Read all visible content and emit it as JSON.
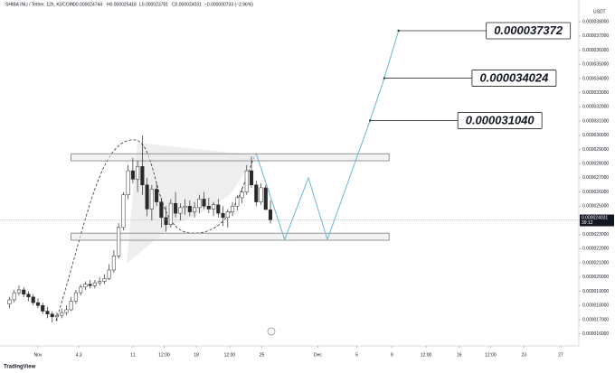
{
  "chart_data": {
    "type": "candlestick",
    "header": {
      "symbol": "SHIBA INU / Tether, 12h, KUCOIN",
      "open": "O0.000024744",
      "high": "H0.000025418",
      "low": "L0.000023781",
      "close": "C0.000024031",
      "change": "−0.000000733 (−2.96%)"
    },
    "currency": "USDT",
    "brand": "TradingView",
    "price_label": "0.000024031",
    "countdown": "39:12",
    "up_color": "#ffffff",
    "down_color": "#2a2a2a",
    "x": [
      -3,
      -2.5,
      -2,
      -1.5,
      -1,
      -0.5,
      0,
      0.5,
      1,
      1.5,
      2,
      2.5,
      3,
      3.5,
      4,
      4.5,
      5,
      5.5,
      6,
      6.5,
      7,
      7.5,
      8,
      8.5,
      9,
      9.5,
      10,
      10.5,
      11,
      11.5,
      12,
      12.5,
      13,
      13.5,
      14,
      14.5,
      15,
      15.5,
      16,
      16.5,
      17,
      17.5,
      18,
      18.5,
      19,
      19.5,
      20,
      20.5,
      21,
      21.5,
      22,
      22.5,
      23,
      23.5,
      24,
      24.5
    ],
    "open": [
      1.81e-05,
      1.84e-05,
      1.89e-05,
      1.91e-05,
      1.88e-05,
      1.86e-05,
      1.82e-05,
      1.8e-05,
      1.76e-05,
      1.74e-05,
      1.72e-05,
      1.73e-05,
      1.75e-05,
      1.77e-05,
      1.83e-05,
      1.89e-05,
      1.93e-05,
      1.95e-05,
      1.94e-05,
      1.96e-05,
      1.97e-05,
      1.99e-05,
      2.05e-05,
      2.15e-05,
      2.35e-05,
      2.58e-05,
      2.75e-05,
      2.69e-05,
      2.78e-05,
      2.65e-05,
      2.48e-05,
      2.62e-05,
      2.53e-05,
      2.42e-05,
      2.37e-05,
      2.52e-05,
      2.45e-05,
      2.49e-05,
      2.5e-05,
      2.46e-05,
      2.49e-05,
      2.55e-05,
      2.5e-05,
      2.48e-05,
      2.51e-05,
      2.45e-05,
      2.42e-05,
      2.46e-05,
      2.5e-05,
      2.56e-05,
      2.6e-05,
      2.75e-05,
      2.65e-05,
      2.53e-05,
      2.63e-05,
      2.4744e-05
    ],
    "high": [
      1.86e-05,
      1.91e-05,
      1.94e-05,
      1.93e-05,
      1.9e-05,
      1.88e-05,
      1.85e-05,
      1.82e-05,
      1.79e-05,
      1.76e-05,
      1.75e-05,
      1.78e-05,
      1.8e-05,
      1.86e-05,
      1.91e-05,
      1.95e-05,
      1.97e-05,
      1.98e-05,
      1.98e-05,
      2e-05,
      2.02e-05,
      2.09e-05,
      2.19e-05,
      2.38e-05,
      2.6e-05,
      2.79e-05,
      2.84e-05,
      2.82e-05,
      3e-05,
      2.7e-05,
      2.65e-05,
      2.66e-05,
      2.56e-05,
      2.5e-05,
      2.55e-05,
      2.6e-05,
      2.52e-05,
      2.55e-05,
      2.54e-05,
      2.53e-05,
      2.58e-05,
      2.6e-05,
      2.56e-05,
      2.53e-05,
      2.55e-05,
      2.5e-05,
      2.48e-05,
      2.53e-05,
      2.58e-05,
      2.63e-05,
      2.79e-05,
      2.85e-05,
      2.68e-05,
      2.66e-05,
      2.65e-05,
      2.5418e-05
    ],
    "low": [
      1.78e-05,
      1.82e-05,
      1.87e-05,
      1.86e-05,
      1.83e-05,
      1.8e-05,
      1.78e-05,
      1.74e-05,
      1.71e-05,
      1.68e-05,
      1.69e-05,
      1.71e-05,
      1.73e-05,
      1.76e-05,
      1.81e-05,
      1.87e-05,
      1.91e-05,
      1.92e-05,
      1.92e-05,
      1.94e-05,
      1.95e-05,
      1.98e-05,
      2.03e-05,
      2.13e-05,
      2.33e-05,
      2.55e-05,
      2.66e-05,
      2.6e-05,
      2.58e-05,
      2.43e-05,
      2.4e-05,
      2.5e-05,
      2.35e-05,
      2.32e-05,
      2.35e-05,
      2.42e-05,
      2.4e-05,
      2.44e-05,
      2.43e-05,
      2.42e-05,
      2.45e-05,
      2.48e-05,
      2.45e-05,
      2.43e-05,
      2.42e-05,
      2.36e-05,
      2.35e-05,
      2.43e-05,
      2.47e-05,
      2.52e-05,
      2.58e-05,
      2.63e-05,
      2.5e-05,
      2.51e-05,
      2.49e-05,
      2.3781e-05
    ],
    "close": [
      1.84e-05,
      1.89e-05,
      1.91e-05,
      1.88e-05,
      1.86e-05,
      1.82e-05,
      1.8e-05,
      1.76e-05,
      1.74e-05,
      1.72e-05,
      1.73e-05,
      1.75e-05,
      1.77e-05,
      1.83e-05,
      1.89e-05,
      1.93e-05,
      1.95e-05,
      1.94e-05,
      1.96e-05,
      1.97e-05,
      1.99e-05,
      2.05e-05,
      2.15e-05,
      2.35e-05,
      2.58e-05,
      2.75e-05,
      2.69e-05,
      2.78e-05,
      2.65e-05,
      2.48e-05,
      2.62e-05,
      2.53e-05,
      2.42e-05,
      2.37e-05,
      2.52e-05,
      2.45e-05,
      2.49e-05,
      2.5e-05,
      2.46e-05,
      2.49e-05,
      2.55e-05,
      2.5e-05,
      2.48e-05,
      2.51e-05,
      2.45e-05,
      2.42e-05,
      2.46e-05,
      2.5e-05,
      2.56e-05,
      2.6e-05,
      2.75e-05,
      2.65e-05,
      2.53e-05,
      2.63e-05,
      2.4764e-05,
      2.4031e-05
    ],
    "zones": [
      {
        "x": [
          3.5,
          37
        ],
        "y": [
          2.82e-05,
          2.87e-05
        ]
      },
      {
        "x": [
          3.5,
          37
        ],
        "y": [
          2.26e-05,
          2.31e-05
        ]
      }
    ],
    "projection": {
      "color": "#6ab8d6",
      "x": [
        23,
        26,
        28.5,
        30.5,
        35,
        36.5,
        38
      ],
      "y": [
        2.87e-05,
        2.265e-05,
        2.7e-05,
        2.265e-05,
        3.104e-05,
        3.4024e-05,
        3.7372e-05
      ]
    },
    "targets": [
      {
        "x": 35,
        "value": 3.104e-05,
        "label": "0.000031040"
      },
      {
        "x": 36.5,
        "value": 3.4024e-05,
        "label": "0.000034024"
      },
      {
        "x": 38,
        "value": 3.7372e-05,
        "label": "0.000037372"
      }
    ],
    "xlim": [
      -4,
      57
    ],
    "ylim": [
      1.515e-05,
      3.89e-05
    ],
    "xticks": [
      {
        "value": 0,
        "label": "Nov"
      },
      4.3,
      {
        "value": 10,
        "label": "11"
      },
      {
        "value": 13.3,
        "label": "12:00"
      },
      {
        "value": 16.7,
        "label": "18"
      },
      {
        "value": 20.2,
        "label": "12:00"
      },
      {
        "value": 23.6,
        "label": "25"
      },
      {
        "value": 29.5,
        "label": "Dec"
      },
      {
        "value": 33.6,
        "label": "5"
      },
      {
        "value": 37.3,
        "label": "9"
      },
      {
        "value": 40.9,
        "label": "12:00"
      },
      {
        "value": 44.4,
        "label": "16"
      },
      {
        "value": 47.7,
        "label": "12:00"
      },
      {
        "value": 51.2,
        "label": "23"
      },
      {
        "value": 55.1,
        "label": "27"
      }
    ],
    "yticks": [
      {
        "value": 1.6e-05,
        "label": "0.000016000"
      },
      {
        "value": 1.7e-05,
        "label": "0.000017000"
      },
      {
        "value": 1.8e-05,
        "label": "0.000018000"
      },
      {
        "value": 1.9e-05,
        "label": "0.000019000"
      },
      {
        "value": 2e-05,
        "label": "0.000020000"
      },
      {
        "value": 2.1e-05,
        "label": "0.000021000"
      },
      {
        "value": 2.2e-05,
        "label": "0.000022000"
      },
      {
        "value": 2.3e-05,
        "label": "0.000023000"
      },
      {
        "value": 2.4e-05,
        "label": "0.000024000"
      },
      {
        "value": 2.5e-05,
        "label": "0.000025000"
      },
      {
        "value": 2.6e-05,
        "label": "0.000026000"
      },
      {
        "value": 2.7e-05,
        "label": "0.000027000"
      },
      {
        "value": 2.8e-05,
        "label": "0.000028000"
      },
      {
        "value": 2.9e-05,
        "label": "0.000029000"
      },
      {
        "value": 3e-05,
        "label": "0.000030000"
      },
      {
        "value": 3.1e-05,
        "label": "0.000031000"
      },
      {
        "value": 3.2e-05,
        "label": "0.000032000"
      },
      {
        "value": 3.3e-05,
        "label": "0.000033000"
      },
      {
        "value": 3.4e-05,
        "label": "0.000034000"
      },
      {
        "value": 3.5e-05,
        "label": "0.000035000"
      },
      {
        "value": 3.6e-05,
        "label": "0.000036000"
      },
      {
        "value": 3.7e-05,
        "label": "0.000037000"
      },
      {
        "value": 3.8e-05,
        "label": "0.000038000"
      }
    ]
  }
}
